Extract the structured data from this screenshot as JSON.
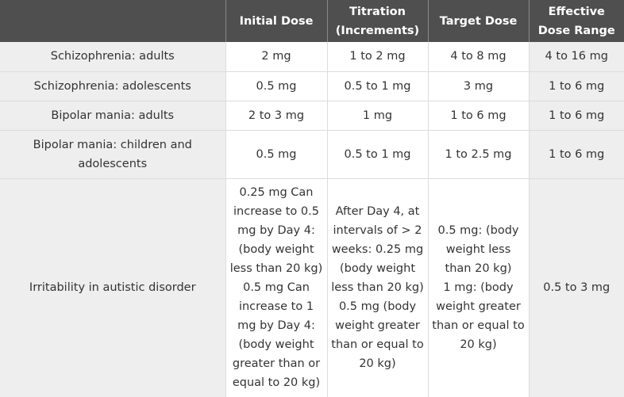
{
  "table": {
    "headers": [
      "",
      "Initial Dose",
      "Titration (Increments)",
      "Target Dose",
      "Effective Dose Range"
    ],
    "rows": [
      [
        "Schizophrenia: adults",
        "2 mg",
        "1 to 2 mg",
        "4 to 8 mg",
        "4 to 16 mg"
      ],
      [
        "Schizophrenia: adolescents",
        "0.5 mg",
        "0.5 to 1 mg",
        "3 mg",
        "1 to 6 mg"
      ],
      [
        "Bipolar mania: adults",
        "2 to 3 mg",
        "1 mg",
        "1 to 6 mg",
        "1 to 6 mg"
      ],
      [
        "Bipolar mania: children and adolescents",
        "0.5 mg",
        "0.5 to 1 mg",
        "1 to 2.5 mg",
        "1 to 6 mg"
      ],
      [
        "Irritability in autistic disorder",
        [
          "0.25 mg Can increase to 0.5 mg by Day 4: (body weight less than 20 kg)",
          "0.5 mg Can increase to 1 mg by Day 4: (body weight greater than or equal to 20 kg)"
        ],
        [
          "After Day 4, at intervals of > 2 weeks: 0.25 mg (body weight less than 20 kg)",
          "0.5 mg (body weight greater than or equal to 20 kg)"
        ],
        [
          "0.5 mg: (body weight less than 20 kg)",
          "1 mg: (body weight greater than or equal to 20 kg)"
        ],
        "0.5 to 3 mg"
      ]
    ]
  }
}
